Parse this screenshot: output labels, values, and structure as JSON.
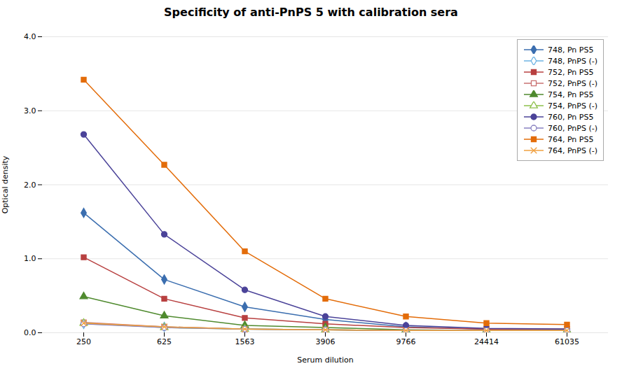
{
  "chart_data": {
    "type": "line",
    "title": "Specificity of anti-PnPS 5 with calibration sera",
    "xlabel": "Serum dilution",
    "ylabel": "Optical density",
    "categories": [
      "250",
      "625",
      "1563",
      "3906",
      "9766",
      "24414",
      "61035"
    ],
    "series": [
      {
        "name": "748, Pn PS5",
        "color": "#3B6EAF",
        "marker": "diamond",
        "values": [
          1.62,
          0.72,
          0.35,
          0.18,
          0.08,
          0.05,
          0.05
        ]
      },
      {
        "name": "748, PnPS (-)",
        "color": "#6EB3E3",
        "marker": "diamond-open",
        "values": [
          0.12,
          0.08,
          0.05,
          0.04,
          0.03,
          0.03,
          0.03
        ]
      },
      {
        "name": "752, Pn PS5",
        "color": "#B84040",
        "marker": "square",
        "values": [
          1.02,
          0.46,
          0.2,
          0.12,
          0.07,
          0.05,
          0.05
        ]
      },
      {
        "name": "752, PnPS (-)",
        "color": "#C97070",
        "marker": "square-open",
        "values": [
          0.14,
          0.08,
          0.05,
          0.04,
          0.03,
          0.03,
          0.03
        ]
      },
      {
        "name": "754, Pn PS5",
        "color": "#4F8A2E",
        "marker": "triangle",
        "values": [
          0.49,
          0.23,
          0.1,
          0.07,
          0.04,
          0.03,
          0.03
        ]
      },
      {
        "name": "754, PnPS (-)",
        "color": "#8DC04A",
        "marker": "triangle-open",
        "values": [
          0.13,
          0.07,
          0.05,
          0.04,
          0.03,
          0.03,
          0.03
        ]
      },
      {
        "name": "760, Pn PS5",
        "color": "#4B4399",
        "marker": "circle",
        "values": [
          2.68,
          1.33,
          0.58,
          0.22,
          0.1,
          0.06,
          0.05
        ]
      },
      {
        "name": "760, PnPS (-)",
        "color": "#8880C0",
        "marker": "circle-open",
        "values": [
          0.12,
          0.07,
          0.05,
          0.04,
          0.03,
          0.03,
          0.03
        ]
      },
      {
        "name": "764, Pn PS5",
        "color": "#E36C09",
        "marker": "square",
        "values": [
          3.42,
          2.27,
          1.1,
          0.46,
          0.22,
          0.13,
          0.11
        ]
      },
      {
        "name": "764, PnPS (-)",
        "color": "#F0A040",
        "marker": "x",
        "values": [
          0.13,
          0.08,
          0.05,
          0.04,
          0.03,
          0.03,
          0.03
        ]
      }
    ],
    "ylim": [
      0.0,
      4.0
    ],
    "yticks": [
      {
        "value": 0.0,
        "label": "0.0"
      },
      {
        "value": 1.0,
        "label": "1.0"
      },
      {
        "value": 2.0,
        "label": "2.0"
      },
      {
        "value": 3.0,
        "label": "3.0"
      },
      {
        "value": 4.0,
        "label": "4.0"
      }
    ],
    "grid": true,
    "legend": "upper right"
  }
}
